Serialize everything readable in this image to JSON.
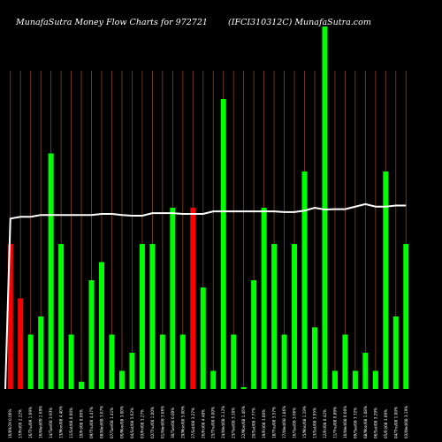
{
  "header": {
    "title_left": "MunafaSutra  Money Flow  Charts for 972721",
    "title_right": "(IFCI310312C) MunafaSutra.com"
  },
  "colors": {
    "background": "#000000",
    "grid": "#8B4513",
    "up": "#00ff00",
    "down": "#ff0000",
    "line": "#ffffff"
  },
  "chart_data": {
    "type": "bar",
    "ylim": [
      0,
      100
    ],
    "grid": "vertical",
    "categories": [
      "16/09/29 0.00%",
      "17/Fri/09 2.22%",
      "16/Thu/09 1.69%",
      "16/Wed/09 2.69%",
      "14/Tue/08 3.93%",
      "13/Mon/08 4.40%",
      "11/Sat/08 0.00%",
      "10/Fri/08 0.06%",
      "09/Thu/08 4.47%",
      "08/Wed/08 3.07%",
      "07/Tue/08 1.41%",
      "06/Mon/08 3.00%",
      "04/Sat/08 5.62%",
      "03/Fri/08 3.27%",
      "02/Thu/08 1.00%",
      "01/Wed/08 3.06%",
      "30/Tue/08 0.00%",
      "29/Mon/08 5.00%",
      "27/Sat/08 3.27%",
      "26/Fri/08 4.48%",
      "25/Thu/08 0.00%",
      "24/Wed/08 3.12%",
      "23/Tue/08 3.10%",
      "22/Mon/08 1.46%",
      "20/Sat/08 7.77%",
      "19/Fri/08 3.00%",
      "18/Thu/08 3.57%",
      "17/Wed/08 1.86%",
      "16/Tue/08 3.66%",
      "15/Mon/08 1.19%",
      "13/Sat/08 3.95%",
      "12/Fri/08 0.42%",
      "11/Thu/08 0.89%",
      "10/Wed/08 0.00%",
      "09/Tue/08 7.72%",
      "08/Mon/08 1.08%",
      "06/Sat/08 3.29%",
      "05/Fri/08 3.09%",
      "04/Thu/08 1.00%",
      "03/Wed/08 3.19%"
    ],
    "series": [
      {
        "kind": "bar",
        "values": [
          40,
          25,
          15,
          20,
          65,
          40,
          15,
          2,
          30,
          35,
          15,
          5,
          10,
          40,
          40,
          15,
          50,
          15,
          50,
          28,
          5,
          80,
          15,
          0.5,
          30,
          50,
          40,
          15,
          40,
          60,
          17,
          100,
          5,
          15,
          5,
          10,
          5,
          60,
          20,
          40
        ],
        "direction": [
          "down",
          "down",
          "up",
          "up",
          "up",
          "up",
          "up",
          "up",
          "up",
          "up",
          "up",
          "up",
          "up",
          "up",
          "up",
          "up",
          "up",
          "up",
          "down",
          "up",
          "up",
          "up",
          "up",
          "up",
          "up",
          "up",
          "up",
          "up",
          "up",
          "up",
          "up",
          "up",
          "up",
          "up",
          "up",
          "up",
          "up",
          "up",
          "up",
          "up"
        ]
      },
      {
        "kind": "line",
        "values": [
          47,
          47.5,
          47.5,
          48,
          48,
          48,
          48,
          48,
          48,
          48.3,
          48.3,
          48,
          47.8,
          47.8,
          48.5,
          48.5,
          48.5,
          48.3,
          48.3,
          48.3,
          49,
          49,
          49,
          49,
          49,
          49,
          49,
          48.8,
          48.8,
          49.2,
          50,
          49.5,
          49.6,
          49.6,
          50.3,
          51,
          50.3,
          50.3,
          50.6,
          50.6
        ]
      }
    ]
  }
}
